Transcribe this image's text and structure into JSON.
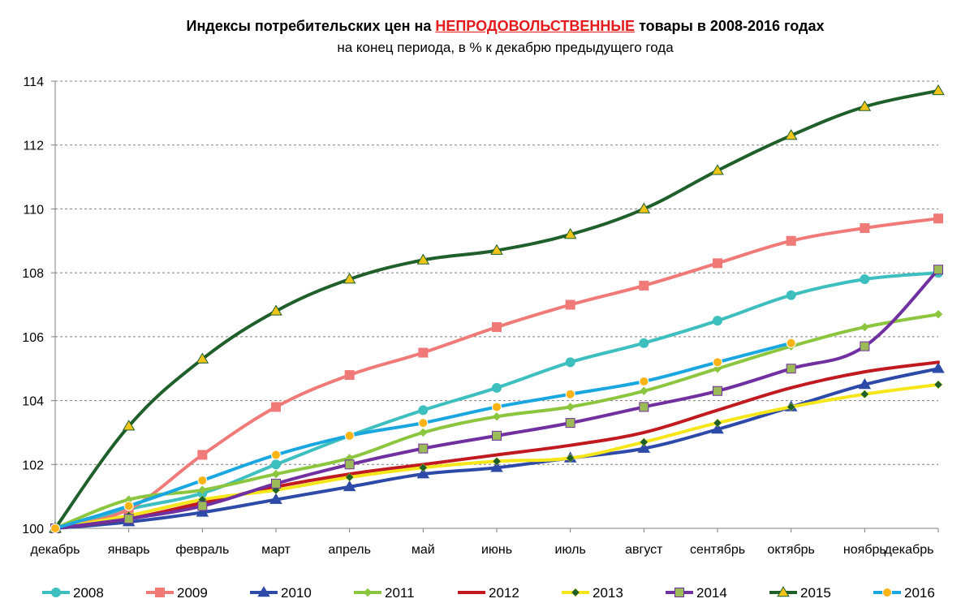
{
  "chart_data": {
    "type": "line",
    "title_prefix": "Индексы потребительских цен на",
    "title_highlight": "НЕПРОДОВОЛЬСТВЕННЫЕ",
    "title_suffix": "товары в 2008-2016 годах",
    "subtitle": "на конец периода, в % к декабрю предыдущего года",
    "categories": [
      "декабрь",
      "январь",
      "февраль",
      "март",
      "апрель",
      "май",
      "июнь",
      "июль",
      "август",
      "сентябрь",
      "октябрь",
      "ноябрь",
      "декабрь"
    ],
    "ylim": [
      100,
      114
    ],
    "yticks": [
      "100",
      "102",
      "104",
      "106",
      "108",
      "110",
      "112",
      "114"
    ],
    "grid": true,
    "legend_position": "bottom",
    "series": [
      {
        "name": "2008",
        "color": "#3ebfbf",
        "marker": "circle",
        "values": [
          100,
          100.6,
          101.1,
          102.0,
          102.9,
          103.7,
          104.4,
          105.2,
          105.8,
          106.5,
          107.3,
          107.8,
          108.0
        ]
      },
      {
        "name": "2009",
        "color": "#f07a78",
        "marker": "square",
        "values": [
          100,
          100.6,
          102.3,
          103.8,
          104.8,
          105.5,
          106.3,
          107.0,
          107.6,
          108.3,
          109.0,
          109.4,
          109.7
        ]
      },
      {
        "name": "2010",
        "color": "#2e4aa8",
        "marker": "triangle",
        "values": [
          100,
          100.2,
          100.5,
          100.9,
          101.3,
          101.7,
          101.9,
          102.2,
          102.5,
          103.1,
          103.8,
          104.5,
          105.0
        ]
      },
      {
        "name": "2011",
        "color": "#8cc63f",
        "marker": "diamond",
        "values": [
          100,
          100.9,
          101.2,
          101.7,
          102.2,
          103.0,
          103.5,
          103.8,
          104.3,
          105.0,
          105.7,
          106.3,
          106.7
        ]
      },
      {
        "name": "2012",
        "color": "#c0191f",
        "marker": "none",
        "values": [
          100,
          100.3,
          100.8,
          101.3,
          101.7,
          102.0,
          102.3,
          102.6,
          103.0,
          103.7,
          104.4,
          104.9,
          105.2
        ]
      },
      {
        "name": "2013",
        "color": "#f5e61a",
        "marker": "diamond",
        "values": [
          100,
          100.4,
          100.9,
          101.2,
          101.6,
          101.9,
          102.1,
          102.2,
          102.7,
          103.3,
          103.8,
          104.2,
          104.5
        ]
      },
      {
        "name": "2014",
        "color": "#7030a0",
        "marker": "square",
        "values": [
          100,
          100.3,
          100.7,
          101.4,
          102.0,
          102.5,
          102.9,
          103.3,
          103.8,
          104.3,
          105.0,
          105.7,
          108.1
        ]
      },
      {
        "name": "2015",
        "color": "#1e5f2a",
        "marker": "triangle",
        "values": [
          100,
          103.2,
          105.3,
          106.8,
          107.8,
          108.4,
          108.7,
          109.2,
          110.0,
          111.2,
          112.3,
          113.2,
          113.7
        ]
      },
      {
        "name": "2016",
        "color": "#1aa7e0",
        "marker": "circle",
        "values": [
          100,
          100.7,
          101.5,
          102.3,
          102.9,
          103.3,
          103.8,
          104.2,
          104.6,
          105.2,
          105.8,
          null,
          null
        ]
      }
    ]
  },
  "colors": {
    "marker_2013": "#1e5f2a",
    "marker_2014": "#9bbb59",
    "marker_2015": "#f0c419",
    "marker_2016": "#fbb415",
    "grid": "#7f7f7f",
    "axis": "#7f7f7f"
  }
}
